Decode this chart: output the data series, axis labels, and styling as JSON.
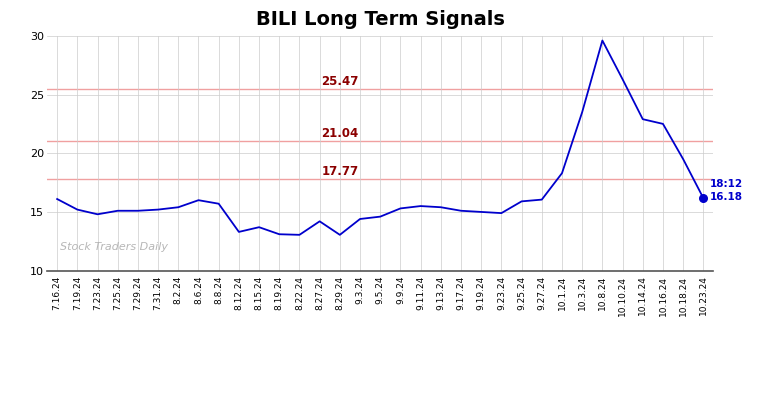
{
  "title": "BILI Long Term Signals",
  "title_fontsize": 14,
  "title_fontweight": "bold",
  "line_color": "#0000cc",
  "background_color": "#ffffff",
  "grid_color": "#cccccc",
  "hline_color": "#f0a0a0",
  "hline_values": [
    17.77,
    21.04,
    25.47
  ],
  "hline_labels": [
    "17.77",
    "21.04",
    "25.47"
  ],
  "hline_label_color": "#8b0000",
  "ylim": [
    10,
    30
  ],
  "yticks": [
    10,
    15,
    20,
    25,
    30
  ],
  "watermark": "Stock Traders Daily",
  "watermark_color": "#aaaaaa",
  "annotation_color": "#0000cc",
  "x_labels": [
    "7.16.24",
    "7.19.24",
    "7.23.24",
    "7.25.24",
    "7.29.24",
    "7.31.24",
    "8.2.24",
    "8.6.24",
    "8.8.24",
    "8.12.24",
    "8.15.24",
    "8.19.24",
    "8.22.24",
    "8.27.24",
    "8.29.24",
    "9.3.24",
    "9.5.24",
    "9.9.24",
    "9.11.24",
    "9.13.24",
    "9.17.24",
    "9.19.24",
    "9.23.24",
    "9.25.24",
    "9.27.24",
    "10.1.24",
    "10.3.24",
    "10.8.24",
    "10.10.24",
    "10.14.24",
    "10.16.24",
    "10.18.24",
    "10.23.24"
  ],
  "y_values": [
    16.1,
    15.2,
    14.8,
    15.1,
    15.1,
    15.2,
    15.4,
    16.0,
    15.7,
    13.3,
    13.7,
    13.1,
    13.05,
    14.2,
    13.05,
    14.4,
    14.6,
    15.3,
    15.5,
    15.4,
    15.1,
    15.0,
    14.9,
    15.9,
    16.05,
    18.3,
    23.5,
    29.6,
    26.3,
    22.9,
    22.5,
    19.5,
    16.18
  ]
}
